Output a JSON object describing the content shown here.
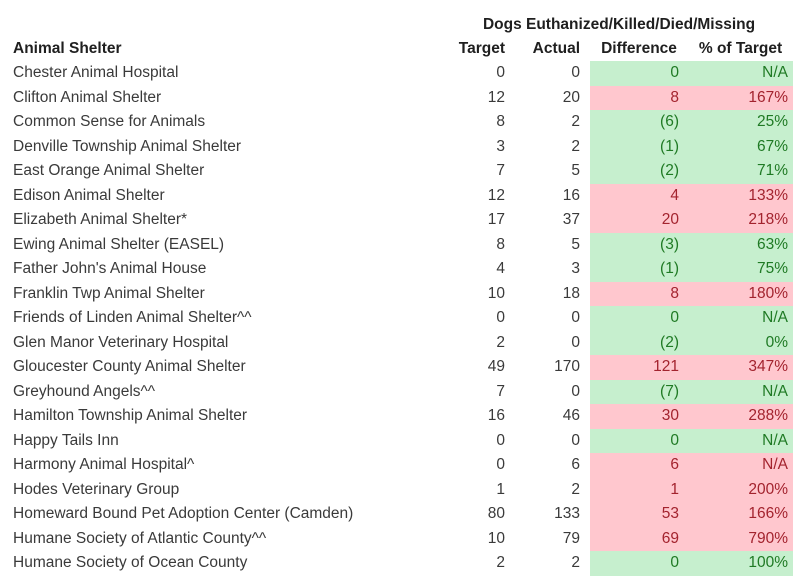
{
  "colors": {
    "good_fill": "#C6EFCE",
    "good_text": "#1F7A24",
    "bad_fill": "#FFC7CE",
    "bad_text": "#A3232E",
    "header_text": "#1f1f1f",
    "body_text": "#3a3a3a",
    "background": "#ffffff"
  },
  "table": {
    "group_header": "Dogs Euthanized/Killed/Died/Missing",
    "columns": [
      "Animal Shelter",
      "Target",
      "Actual",
      "Difference",
      "% of Target"
    ],
    "rows": [
      {
        "name": "Chester Animal Hospital",
        "target": "0",
        "actual": "0",
        "difference": "0",
        "percent": "N/A",
        "status": "good"
      },
      {
        "name": "Clifton Animal Shelter",
        "target": "12",
        "actual": "20",
        "difference": "8",
        "percent": "167%",
        "status": "bad"
      },
      {
        "name": "Common Sense for Animals",
        "target": "8",
        "actual": "2",
        "difference": "(6)",
        "percent": "25%",
        "status": "good"
      },
      {
        "name": "Denville Township Animal Shelter",
        "target": "3",
        "actual": "2",
        "difference": "(1)",
        "percent": "67%",
        "status": "good"
      },
      {
        "name": "East Orange Animal Shelter",
        "target": "7",
        "actual": "5",
        "difference": "(2)",
        "percent": "71%",
        "status": "good"
      },
      {
        "name": "Edison Animal Shelter",
        "target": "12",
        "actual": "16",
        "difference": "4",
        "percent": "133%",
        "status": "bad"
      },
      {
        "name": "Elizabeth Animal Shelter*",
        "target": "17",
        "actual": "37",
        "difference": "20",
        "percent": "218%",
        "status": "bad"
      },
      {
        "name": "Ewing Animal Shelter (EASEL)",
        "target": "8",
        "actual": "5",
        "difference": "(3)",
        "percent": "63%",
        "status": "good"
      },
      {
        "name": "Father John's Animal House",
        "target": "4",
        "actual": "3",
        "difference": "(1)",
        "percent": "75%",
        "status": "good"
      },
      {
        "name": "Franklin Twp Animal Shelter",
        "target": "10",
        "actual": "18",
        "difference": "8",
        "percent": "180%",
        "status": "bad"
      },
      {
        "name": "Friends of Linden Animal Shelter^^",
        "target": "0",
        "actual": "0",
        "difference": "0",
        "percent": "N/A",
        "status": "good"
      },
      {
        "name": "Glen Manor Veterinary Hospital",
        "target": "2",
        "actual": "0",
        "difference": "(2)",
        "percent": "0%",
        "status": "good"
      },
      {
        "name": "Gloucester County Animal Shelter",
        "target": "49",
        "actual": "170",
        "difference": "121",
        "percent": "347%",
        "status": "bad"
      },
      {
        "name": "Greyhound Angels^^",
        "target": "7",
        "actual": "0",
        "difference": "(7)",
        "percent": "N/A",
        "status": "good"
      },
      {
        "name": "Hamilton Township Animal Shelter",
        "target": "16",
        "actual": "46",
        "difference": "30",
        "percent": "288%",
        "status": "bad"
      },
      {
        "name": "Happy Tails Inn",
        "target": "0",
        "actual": "0",
        "difference": "0",
        "percent": "N/A",
        "status": "good"
      },
      {
        "name": "Harmony Animal Hospital^",
        "target": "0",
        "actual": "6",
        "difference": "6",
        "percent": "N/A",
        "status": "bad"
      },
      {
        "name": "Hodes Veterinary Group",
        "target": "1",
        "actual": "2",
        "difference": "1",
        "percent": "200%",
        "status": "bad"
      },
      {
        "name": "Homeward Bound Pet Adoption Center (Camden)",
        "target": "80",
        "actual": "133",
        "difference": "53",
        "percent": "166%",
        "status": "bad"
      },
      {
        "name": "Humane Society of Atlantic County^^",
        "target": "10",
        "actual": "79",
        "difference": "69",
        "percent": "790%",
        "status": "bad"
      },
      {
        "name": "Humane Society of Ocean County",
        "target": "2",
        "actual": "2",
        "difference": "0",
        "percent": "100%",
        "status": "good"
      }
    ]
  }
}
